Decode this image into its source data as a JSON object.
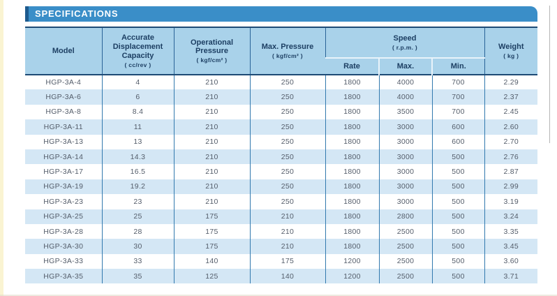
{
  "page": {
    "title": "SPECIFICATIONS"
  },
  "colors": {
    "title_bar": "#3a8ec8",
    "title_bar_edge": "#1d5a8e",
    "header_fill": "#a9d2ea",
    "header_text": "#1d3f63",
    "row_alt_fill": "#d4e7f5",
    "grid_line": "#3279ae",
    "header_border": "#1d4a75",
    "data_text": "#545d6a"
  },
  "table": {
    "headers": {
      "model": "Model",
      "displacement": "Accurate Displacement Capacity",
      "displacement_unit": "( cc/rev )",
      "op_pressure": "Operational Pressure",
      "op_pressure_unit": "( kgf/cm² )",
      "max_pressure": "Max. Pressure",
      "max_pressure_unit": "( kgf/cm² )",
      "speed": "Speed",
      "speed_unit": "( r.p.m. )",
      "speed_rate": "Rate",
      "speed_max": "Max.",
      "speed_min": "Min.",
      "weight": "Weight",
      "weight_unit": "( kg )"
    },
    "column_keys": [
      "model",
      "displacement",
      "op-pressure",
      "max-pressure",
      "speed-rate",
      "speed-max",
      "speed-min",
      "weight"
    ],
    "rows": [
      [
        "HGP-3A-4",
        "4",
        "210",
        "250",
        "1800",
        "4000",
        "700",
        "2.29"
      ],
      [
        "HGP-3A-6",
        "6",
        "210",
        "250",
        "1800",
        "4000",
        "700",
        "2.37"
      ],
      [
        "HGP-3A-8",
        "8.4",
        "210",
        "250",
        "1800",
        "3500",
        "700",
        "2.45"
      ],
      [
        "HGP-3A-11",
        "11",
        "210",
        "250",
        "1800",
        "3000",
        "600",
        "2.60"
      ],
      [
        "HGP-3A-13",
        "13",
        "210",
        "250",
        "1800",
        "3000",
        "600",
        "2.70"
      ],
      [
        "HGP-3A-14",
        "14.3",
        "210",
        "250",
        "1800",
        "3000",
        "500",
        "2.76"
      ],
      [
        "HGP-3A-17",
        "16.5",
        "210",
        "250",
        "1800",
        "3000",
        "500",
        "2.87"
      ],
      [
        "HGP-3A-19",
        "19.2",
        "210",
        "250",
        "1800",
        "3000",
        "500",
        "2.99"
      ],
      [
        "HGP-3A-23",
        "23",
        "210",
        "250",
        "1800",
        "3000",
        "500",
        "3.19"
      ],
      [
        "HGP-3A-25",
        "25",
        "175",
        "210",
        "1800",
        "2800",
        "500",
        "3.24"
      ],
      [
        "HGP-3A-28",
        "28",
        "175",
        "210",
        "1800",
        "2500",
        "500",
        "3.35"
      ],
      [
        "HGP-3A-30",
        "30",
        "175",
        "210",
        "1800",
        "2500",
        "500",
        "3.45"
      ],
      [
        "HGP-3A-33",
        "33",
        "140",
        "175",
        "1200",
        "2500",
        "500",
        "3.60"
      ],
      [
        "HGP-3A-35",
        "35",
        "125",
        "140",
        "1200",
        "2500",
        "500",
        "3.71"
      ]
    ]
  }
}
